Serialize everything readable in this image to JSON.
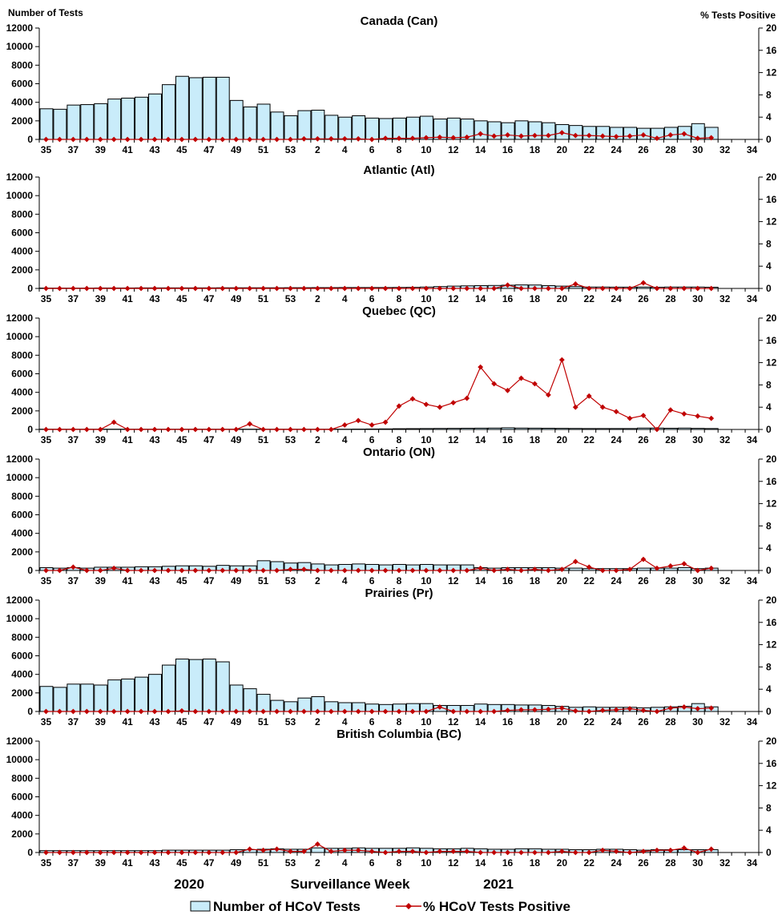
{
  "chart_data": {
    "type": "bar+line",
    "y_left_label": "Number of Tests",
    "y_right_label": "% Tests Positive",
    "y_left_ticks": [
      "0",
      "2000",
      "4000",
      "6000",
      "8000",
      "10000",
      "12000"
    ],
    "y_right_ticks": [
      "0",
      "4",
      "8",
      "12",
      "16",
      "20"
    ],
    "ylim_left": [
      0,
      12000
    ],
    "ylim_right": [
      0,
      20
    ],
    "weeks": [
      35,
      36,
      37,
      38,
      39,
      40,
      41,
      42,
      43,
      44,
      45,
      46,
      47,
      48,
      49,
      50,
      51,
      52,
      53,
      1,
      2,
      3,
      4,
      5,
      6,
      7,
      8,
      9,
      10,
      11,
      12,
      13,
      14,
      15,
      16,
      17,
      18,
      19,
      20,
      21,
      22,
      23,
      24,
      25,
      26,
      27,
      28,
      29,
      30,
      31,
      32,
      33,
      34
    ],
    "x_tick_labels": [
      "35",
      "37",
      "39",
      "41",
      "43",
      "45",
      "47",
      "49",
      "51",
      "53",
      "2",
      "4",
      "6",
      "8",
      "10",
      "12",
      "14",
      "16",
      "18",
      "20",
      "22",
      "24",
      "26",
      "28",
      "30",
      "32",
      "34"
    ],
    "xlabel": "Surveillance Week",
    "year_labels": [
      "2020",
      "2021"
    ],
    "legend": {
      "bars": "Number of HCoV Tests",
      "line": "% HCoV Tests Positive"
    },
    "colors": {
      "bar_fill": "#c9ecfa",
      "bar_stroke": "#000000",
      "line": "#c00000"
    },
    "panels": [
      {
        "title": "Canada (Can)",
        "tests": [
          3300,
          3250,
          3700,
          3750,
          3850,
          4350,
          4450,
          4550,
          4900,
          5900,
          6800,
          6650,
          6700,
          6700,
          4200,
          3500,
          3800,
          2950,
          2550,
          3100,
          3150,
          2600,
          2400,
          2550,
          2300,
          2250,
          2300,
          2400,
          2500,
          2200,
          2300,
          2200,
          2000,
          1900,
          1800,
          2000,
          1900,
          1800,
          1600,
          1500,
          1400,
          1400,
          1300,
          1300,
          1200,
          1200,
          1300,
          1400,
          1700,
          1300,
          null,
          null,
          null
        ],
        "pct": [
          0,
          0,
          0,
          0,
          0,
          0,
          0,
          0,
          0,
          0,
          0,
          0,
          0,
          0,
          0,
          0,
          0,
          0,
          0,
          0.1,
          0.1,
          0.1,
          0.1,
          0.1,
          0,
          0.2,
          0.2,
          0.2,
          0.3,
          0.4,
          0.3,
          0.4,
          1.0,
          0.6,
          0.8,
          0.6,
          0.7,
          0.7,
          1.2,
          0.7,
          0.7,
          0.6,
          0.5,
          0.6,
          0.8,
          0.2,
          0.8,
          1.0,
          0.2,
          0.3,
          null,
          null,
          null
        ]
      },
      {
        "title": "Atlantic (Atl)",
        "tests": [
          40,
          40,
          40,
          40,
          50,
          50,
          50,
          60,
          60,
          60,
          60,
          60,
          60,
          70,
          70,
          70,
          70,
          70,
          80,
          80,
          90,
          90,
          100,
          100,
          100,
          100,
          110,
          120,
          150,
          200,
          250,
          280,
          300,
          320,
          350,
          380,
          370,
          300,
          250,
          200,
          150,
          150,
          140,
          140,
          150,
          130,
          150,
          150,
          150,
          130,
          null,
          null,
          null
        ],
        "pct": [
          0,
          0,
          0,
          0,
          0,
          0,
          0,
          0,
          0,
          0,
          0,
          0,
          0,
          0,
          0,
          0,
          0,
          0,
          0,
          0,
          0,
          0,
          0,
          0,
          0,
          0,
          0,
          0,
          0,
          0,
          0,
          0,
          0,
          0,
          0.6,
          0,
          0,
          0,
          0,
          0.8,
          0,
          0,
          0,
          0,
          1.0,
          0,
          0,
          0,
          0,
          0,
          null,
          null,
          null
        ]
      },
      {
        "title": "Quebec (QC)",
        "tests": [
          30,
          30,
          30,
          30,
          30,
          30,
          30,
          30,
          30,
          30,
          30,
          30,
          30,
          30,
          30,
          30,
          30,
          30,
          30,
          30,
          30,
          30,
          30,
          40,
          50,
          60,
          80,
          90,
          100,
          110,
          120,
          130,
          140,
          150,
          180,
          150,
          140,
          130,
          120,
          110,
          100,
          100,
          100,
          100,
          150,
          150,
          130,
          150,
          120,
          100,
          null,
          null,
          null
        ],
        "pct": [
          0,
          0,
          0,
          0,
          0,
          1.3,
          0,
          0,
          0,
          0,
          0,
          0,
          0,
          0,
          0,
          1.0,
          0,
          0,
          0,
          0,
          0,
          0,
          0.8,
          1.6,
          0.8,
          1.3,
          4.2,
          5.5,
          4.5,
          4.0,
          4.8,
          5.6,
          11.2,
          8.2,
          7.0,
          9.2,
          8.2,
          6.2,
          12.5,
          4.0,
          6.0,
          4.0,
          3.2,
          2.0,
          2.5,
          0,
          3.5,
          2.8,
          2.4,
          2.0,
          null,
          null,
          null
        ]
      },
      {
        "title": "Ontario (ON)",
        "tests": [
          300,
          250,
          300,
          250,
          350,
          350,
          350,
          400,
          400,
          450,
          500,
          500,
          450,
          550,
          500,
          500,
          1050,
          950,
          800,
          850,
          700,
          600,
          650,
          700,
          650,
          600,
          650,
          600,
          650,
          600,
          600,
          600,
          300,
          250,
          300,
          300,
          300,
          300,
          250,
          250,
          200,
          200,
          200,
          200,
          250,
          250,
          250,
          300,
          200,
          250,
          null,
          null,
          null
        ],
        "pct": [
          0,
          0,
          0.6,
          0,
          0,
          0.4,
          0,
          0,
          0,
          0,
          0,
          0,
          0,
          0,
          0,
          0,
          0,
          0,
          0.2,
          0.2,
          0,
          0,
          0,
          0,
          0,
          0,
          0,
          0,
          0,
          0,
          0,
          0,
          0.4,
          0,
          0.2,
          0,
          0.2,
          0,
          0.2,
          1.6,
          0.6,
          0,
          0,
          0.2,
          2.0,
          0.4,
          0.8,
          1.2,
          0,
          0.4,
          null,
          null,
          null
        ]
      },
      {
        "title": "Prairies (Pr)",
        "tests": [
          2700,
          2600,
          2950,
          2950,
          2850,
          3400,
          3500,
          3700,
          4000,
          5000,
          5650,
          5600,
          5650,
          5350,
          2850,
          2450,
          1850,
          1200,
          1050,
          1450,
          1600,
          1050,
          950,
          950,
          800,
          750,
          800,
          850,
          850,
          650,
          650,
          650,
          800,
          750,
          750,
          700,
          700,
          650,
          550,
          450,
          500,
          450,
          450,
          450,
          400,
          450,
          500,
          550,
          850,
          500,
          null,
          null,
          null
        ],
        "pct": [
          0,
          0,
          0,
          0,
          0,
          0,
          0,
          0,
          0,
          0,
          0.1,
          0,
          0,
          0,
          0,
          0,
          0,
          0,
          0,
          0,
          0,
          0,
          0,
          0,
          0,
          0,
          0,
          0,
          0,
          0.8,
          0,
          0,
          0,
          0,
          0.2,
          0.3,
          0.3,
          0.4,
          0.6,
          0.1,
          0,
          0.2,
          0.3,
          0.5,
          0.2,
          0,
          0.6,
          0.8,
          0.5,
          0.6,
          null,
          null,
          null
        ]
      },
      {
        "title": "British Columbia (BC)",
        "tests": [
          200,
          200,
          200,
          200,
          200,
          200,
          200,
          200,
          200,
          250,
          250,
          250,
          250,
          250,
          300,
          300,
          350,
          400,
          350,
          350,
          500,
          450,
          450,
          500,
          450,
          450,
          450,
          500,
          450,
          400,
          400,
          450,
          400,
          350,
          350,
          400,
          400,
          350,
          350,
          300,
          300,
          350,
          350,
          300,
          250,
          300,
          300,
          300,
          300,
          300,
          null,
          null,
          null
        ],
        "pct": [
          0,
          0,
          0,
          0,
          0,
          0,
          0,
          0,
          0,
          0,
          0,
          0,
          0,
          0,
          0,
          0.6,
          0.4,
          0.6,
          0.2,
          0.2,
          1.5,
          0.2,
          0.4,
          0.4,
          0.2,
          0,
          0.2,
          0.2,
          0,
          0.2,
          0.2,
          0.2,
          0,
          0,
          0,
          0,
          0,
          0,
          0.2,
          0,
          0,
          0.4,
          0.2,
          0,
          0.2,
          0.4,
          0.4,
          0.8,
          0,
          0.6,
          null,
          null,
          null
        ]
      }
    ]
  }
}
